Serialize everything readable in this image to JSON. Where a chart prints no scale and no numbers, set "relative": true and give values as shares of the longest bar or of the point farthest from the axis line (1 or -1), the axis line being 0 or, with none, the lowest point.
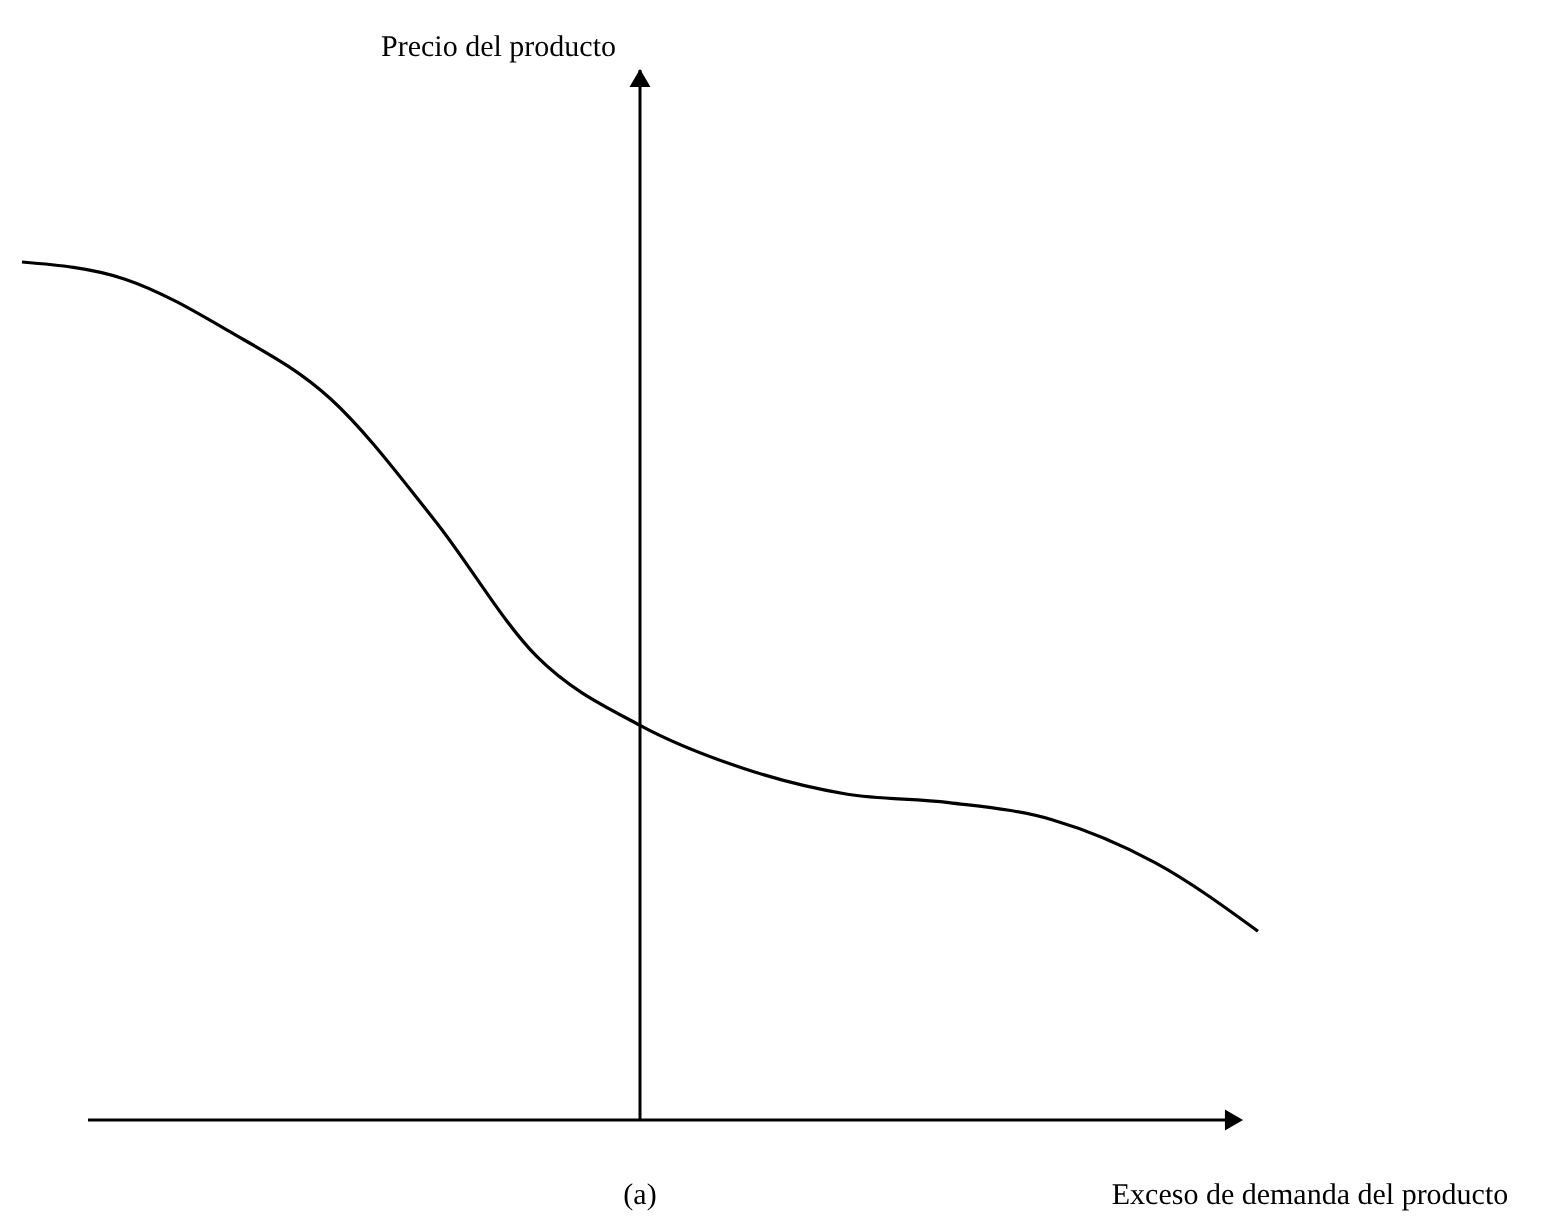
{
  "chart_data": {
    "type": "line",
    "relative": true,
    "xlabel": "Exceso de demanda del producto",
    "annotations": [
      "Precio del producto",
      "(a)"
    ],
    "categories": [
      null,
      null,
      null,
      null,
      null,
      null,
      null,
      null,
      null,
      null,
      null,
      null,
      null
    ],
    "series": [
      {
        "color": "#000000",
        "values": [
          1.0,
          0.98,
          0.92,
          0.84,
          0.7,
          0.54,
          0.46,
          0.41,
          0.38,
          0.37,
          0.35,
          0.3,
          0.22
        ]
      }
    ],
    "marker": "none",
    "line_style": "solid",
    "legend": false
  }
}
